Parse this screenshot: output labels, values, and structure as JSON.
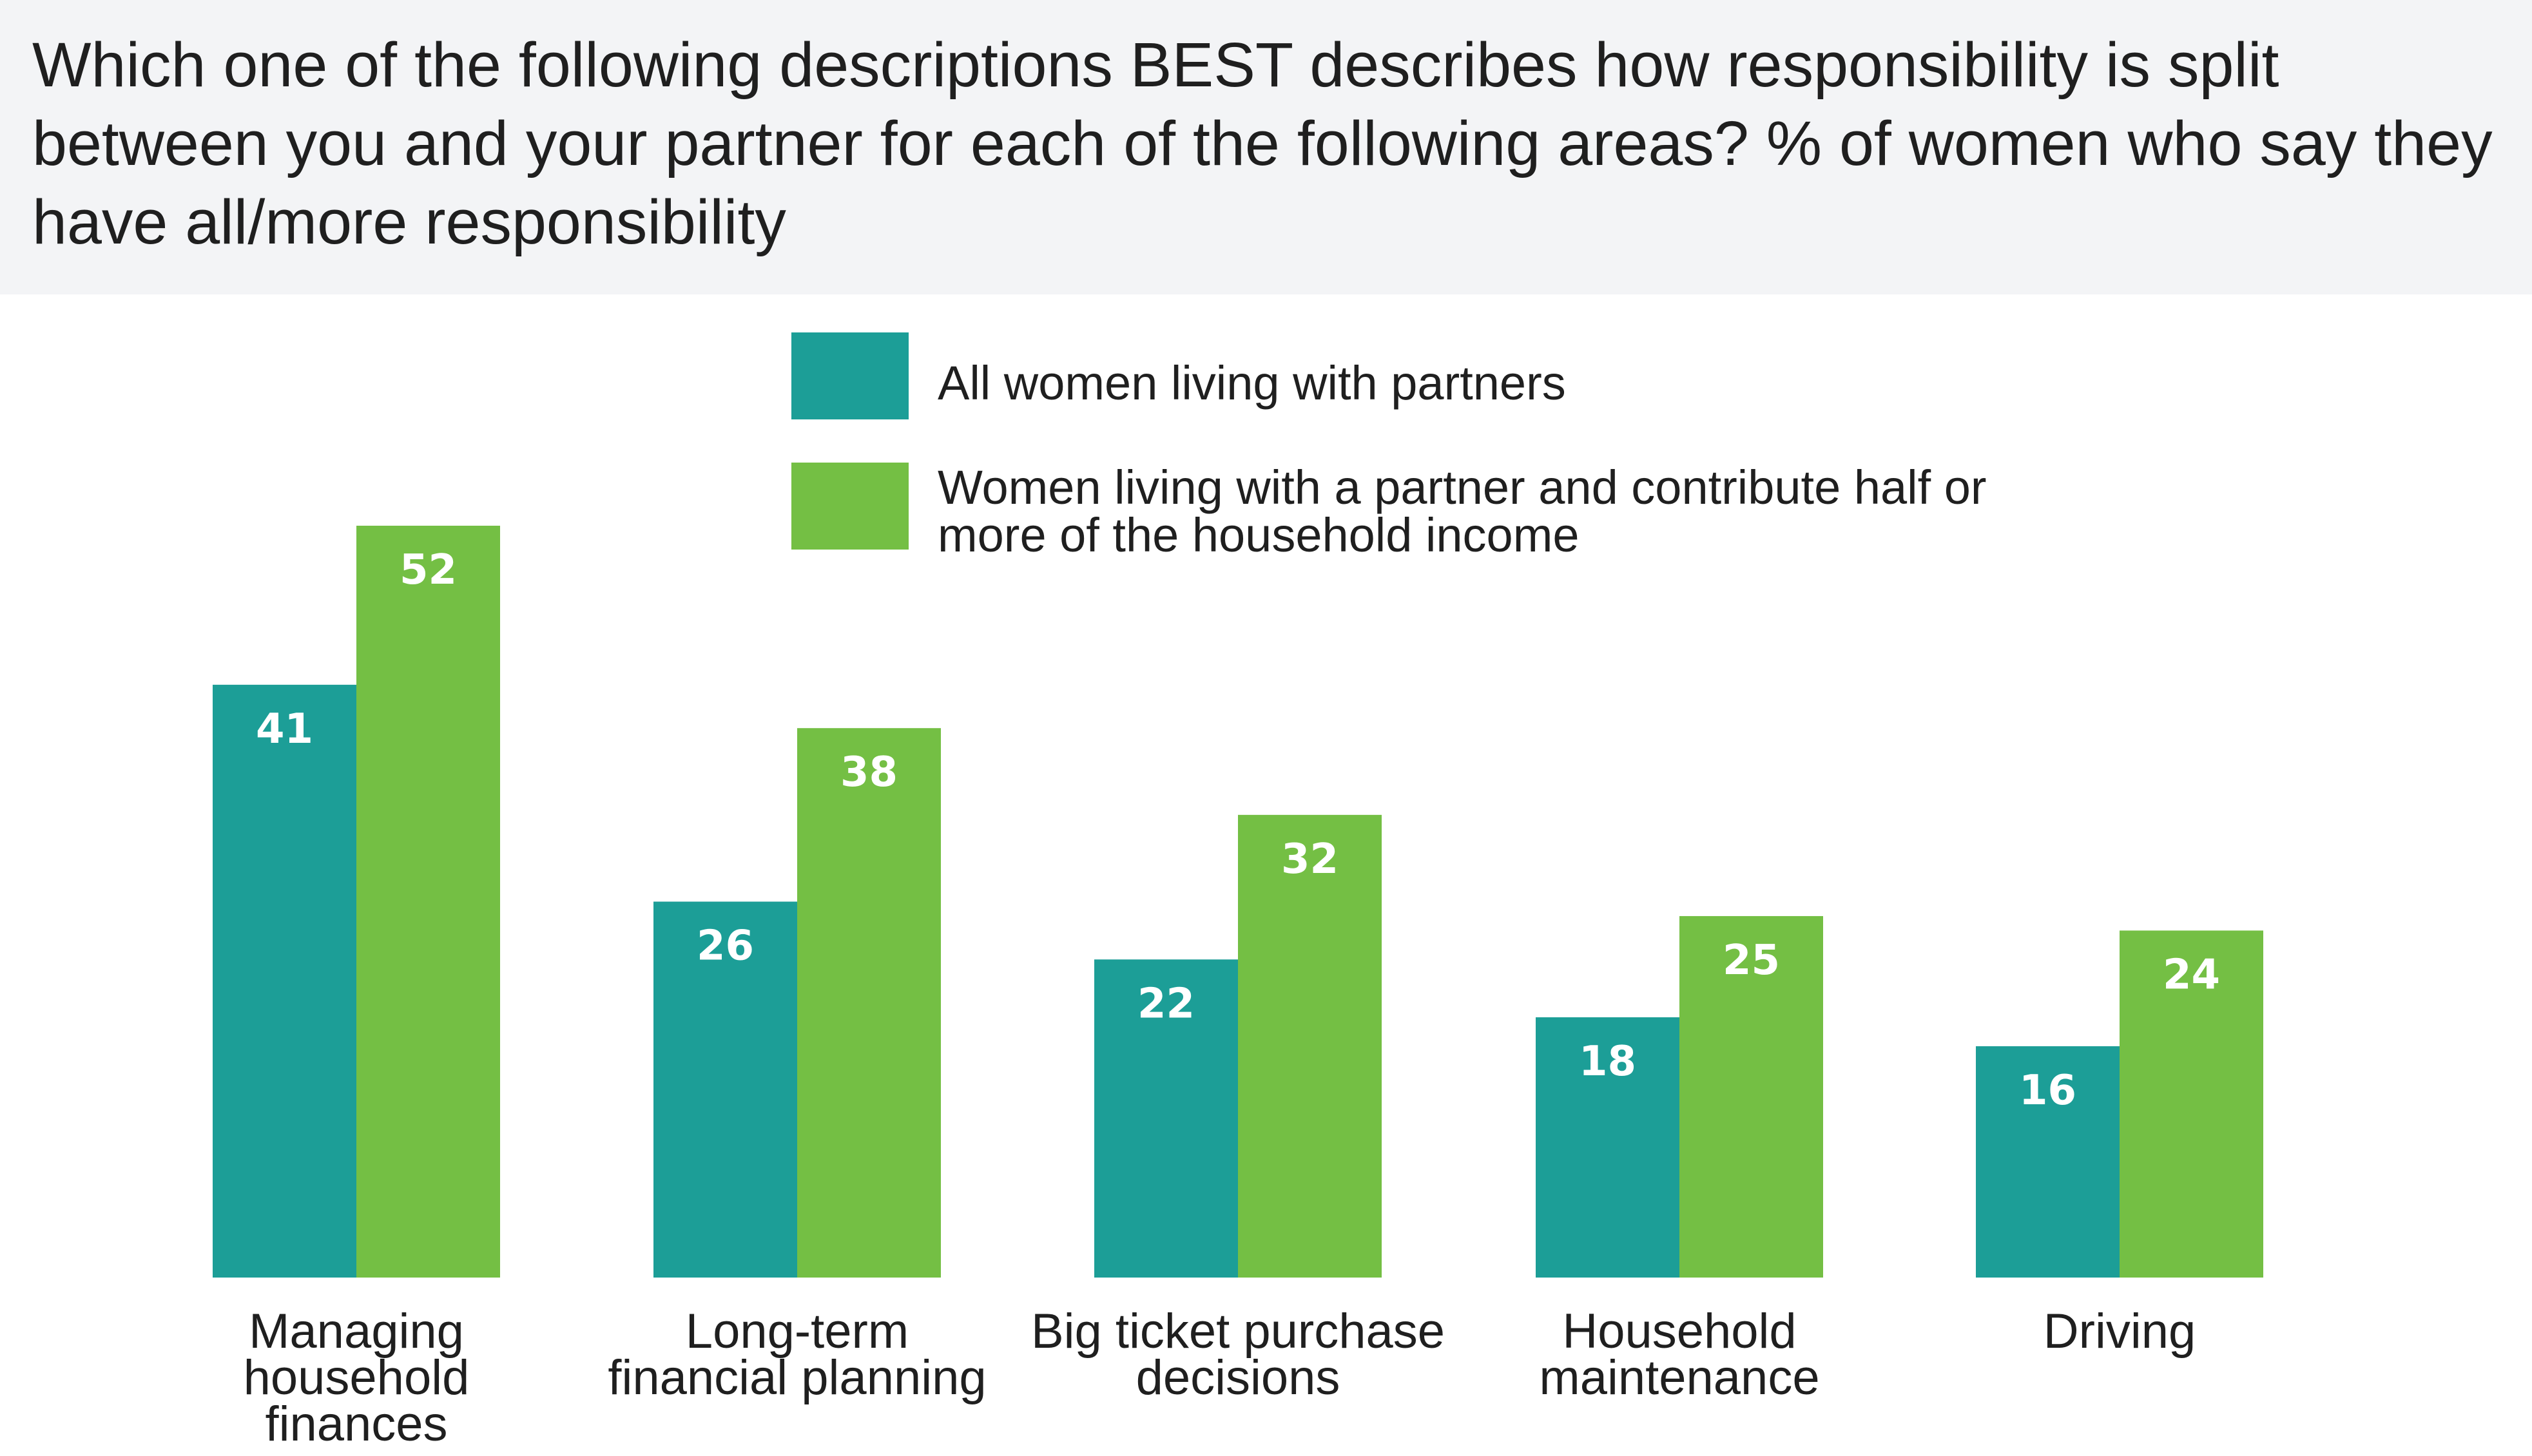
{
  "title": "Which one of the following descriptions BEST describes how responsibility is split between you and your partner for each of the following areas? % of women who say they have all/more responsibility",
  "legend": [
    {
      "label": "All women living with partners",
      "color": "#1c9e97"
    },
    {
      "label": "Women living with a partner and contribute half or more of the household income",
      "color": "#74bf44"
    }
  ],
  "chart_data": {
    "type": "bar",
    "title": "Which one of the following descriptions BEST describes how responsibility is split between you and your partner for each of the following areas? % of women who say they have all/more responsibility",
    "categories": [
      "Managing household finances",
      "Long-term financial planning",
      "Big ticket purchase decisions",
      "Household maintenance",
      "Driving"
    ],
    "category_lines": [
      [
        "Managing",
        "household",
        "finances"
      ],
      [
        "Long-term",
        "financial planning"
      ],
      [
        "Big ticket purchase",
        "decisions"
      ],
      [
        "Household",
        "maintenance"
      ],
      [
        "Driving"
      ]
    ],
    "series": [
      {
        "name": "All women living with partners",
        "color": "#1c9e97",
        "values": [
          41,
          26,
          22,
          18,
          16
        ]
      },
      {
        "name": "Women living with a partner and contribute half or more of the household income",
        "color": "#74bf44",
        "values": [
          52,
          38,
          32,
          25,
          24
        ]
      }
    ],
    "xlabel": "",
    "ylabel": "",
    "ylim": [
      0,
      52
    ],
    "grid": false,
    "legend_position": "top-center",
    "data_labels": true
  }
}
